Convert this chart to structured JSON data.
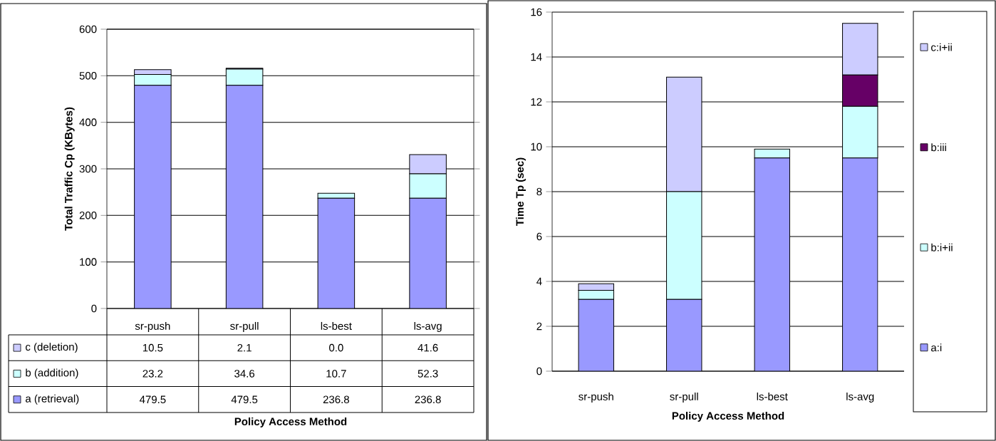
{
  "chart_data": [
    {
      "type": "bar",
      "stacked": true,
      "categories": [
        "sr-push",
        "sr-pull",
        "ls-best",
        "ls-avg"
      ],
      "xlabel": "Policy Access Method",
      "ylabel": "Total Traffic Cp (KBytes)",
      "ylim": [
        0,
        600
      ],
      "yticks": [
        0,
        100,
        200,
        300,
        400,
        500,
        600
      ],
      "grid": "y",
      "legend": "bottom",
      "series": [
        {
          "name": "a (retrieval)",
          "color": "#9999ff",
          "values": [
            479.5,
            479.5,
            236.8,
            236.8
          ],
          "value_labels": [
            "479.5",
            "479.5",
            "236.8",
            "236.8"
          ]
        },
        {
          "name": "b (addition)",
          "color": "#ccffff",
          "values": [
            23.2,
            34.6,
            10.7,
            52.3
          ],
          "value_labels": [
            "23.2",
            "34.6",
            "10.7",
            "52.3"
          ]
        },
        {
          "name": "c (deletion)",
          "color": "#ccccff",
          "values": [
            10.5,
            2.1,
            0.0,
            41.6
          ],
          "value_labels": [
            "10.5",
            "2.1",
            "0.0",
            "41.6"
          ]
        }
      ]
    },
    {
      "type": "bar",
      "stacked": true,
      "categories": [
        "sr-push",
        "sr-pull",
        "ls-best",
        "ls-avg"
      ],
      "xlabel": "Policy Access Method",
      "ylabel": "Time Tp (sec)",
      "ylim": [
        0,
        16
      ],
      "yticks": [
        0,
        2,
        4,
        6,
        8,
        10,
        12,
        14,
        16
      ],
      "grid": "y",
      "legend": "right",
      "series": [
        {
          "name": "a:i",
          "color": "#9999ff",
          "values": [
            3.2,
            3.2,
            9.5,
            9.5
          ]
        },
        {
          "name": "b:i+ii",
          "color": "#ccffff",
          "values": [
            0.4,
            4.8,
            0.4,
            2.3
          ]
        },
        {
          "name": "b:iii",
          "color": "#660066",
          "values": [
            0,
            0,
            0,
            1.4
          ]
        },
        {
          "name": "c:i+ii",
          "color": "#ccccff",
          "values": [
            0.3,
            5.1,
            0,
            2.3
          ]
        }
      ]
    }
  ]
}
